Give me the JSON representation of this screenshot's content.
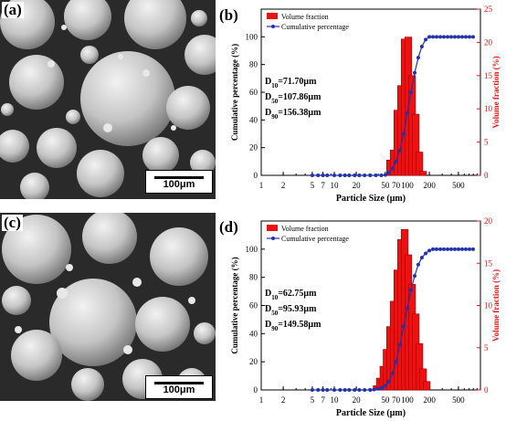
{
  "sem_images": [
    {
      "label": "(a)",
      "scale_bar": "100μm"
    },
    {
      "label": "(c)",
      "scale_bar": "100μm"
    }
  ],
  "colors": {
    "volume": "#ee1111",
    "cumulative": "#2233aa",
    "sem_bg": "#2a2a2a"
  },
  "chart_data": [
    {
      "type": "bar",
      "panel_label": "(b)",
      "xlabel": "Particle Size (μm)",
      "ylabel": "Cumulative percentage (%)",
      "y2label": "Volume fraction (%)",
      "x_scale": "log",
      "xlim": [
        1,
        1000
      ],
      "ylim": [
        0,
        120
      ],
      "y2lim": [
        0,
        25
      ],
      "xticks": [
        1,
        2,
        5,
        7,
        10,
        20,
        50,
        70,
        100,
        200,
        500
      ],
      "yticks": [
        0,
        20,
        40,
        60,
        80,
        100
      ],
      "y2ticks": [
        0,
        5,
        10,
        15,
        20,
        25
      ],
      "legend": {
        "position": "top-left",
        "entries": [
          "Volume fraction",
          "Cumulative percentage"
        ]
      },
      "stats": [
        "D10=71.70μm",
        "D50=107.86μm",
        "D90=156.38μm"
      ],
      "stat_parts": [
        [
          "D",
          "10",
          "=71.70μm"
        ],
        [
          "D",
          "50",
          "=107.86μm"
        ],
        [
          "D",
          "90",
          "=156.38μm"
        ]
      ],
      "volume_fraction": {
        "name": "Volume fraction",
        "x": [
          58,
          65,
          73,
          82,
          92,
          103,
          116,
          130,
          146,
          164
        ],
        "values": [
          2.3,
          3.8,
          9.8,
          13.5,
          20.5,
          20.8,
          15.0,
          9.2,
          3.5,
          0.6
        ]
      },
      "cumulative": {
        "name": "Cumulative percentage",
        "x": [
          5,
          6,
          7,
          8,
          10,
          12,
          14,
          16,
          19,
          22,
          26,
          31,
          37,
          44,
          50,
          56,
          63,
          70,
          79,
          89,
          100,
          112,
          126,
          141,
          158,
          178,
          200,
          224,
          251,
          282,
          316,
          355,
          398,
          447,
          501,
          562,
          631,
          708,
          794
        ],
        "values": [
          0,
          0,
          0,
          0,
          0,
          0,
          0,
          0,
          0,
          0,
          0,
          0,
          0,
          0,
          0.3,
          2,
          5,
          10,
          18,
          30,
          45,
          60,
          74,
          85,
          93,
          98,
          100,
          100,
          100,
          100,
          100,
          100,
          100,
          100,
          100,
          100,
          100,
          100,
          100
        ]
      }
    },
    {
      "type": "bar",
      "panel_label": "(d)",
      "xlabel": "Particle Size (μm)",
      "ylabel": "Cumulative percentage (%)",
      "y2label": "Volume fraction (%)",
      "x_scale": "log",
      "xlim": [
        1,
        1000
      ],
      "ylim": [
        0,
        120
      ],
      "y2lim": [
        0,
        20
      ],
      "xticks": [
        1,
        2,
        5,
        7,
        10,
        20,
        50,
        70,
        100,
        200,
        500
      ],
      "yticks": [
        0,
        20,
        40,
        60,
        80,
        100
      ],
      "y2ticks": [
        0,
        5,
        10,
        15,
        20
      ],
      "legend": {
        "position": "top-left",
        "entries": [
          "Volume fraction",
          "Cumulative percentage"
        ]
      },
      "stats": [
        "D10=62.75μm",
        "D50=95.93μm",
        "D90=149.58μm"
      ],
      "stat_parts": [
        [
          "D",
          "10",
          "=62.75μm"
        ],
        [
          "D",
          "50",
          "=95.93μm"
        ],
        [
          "D",
          "90",
          "=149.58μm"
        ]
      ],
      "volume_fraction": {
        "name": "Volume fraction",
        "x": [
          38,
          42,
          47,
          52,
          58,
          65,
          73,
          82,
          92,
          103,
          116,
          130,
          146,
          164,
          184
        ],
        "values": [
          0.5,
          1.4,
          2.8,
          4.8,
          7.5,
          10.5,
          14.2,
          17.8,
          19.0,
          16.0,
          12.5,
          9.0,
          5.5,
          2.5,
          1.0
        ]
      },
      "cumulative": {
        "name": "Cumulative percentage",
        "x": [
          5,
          6,
          7,
          8,
          10,
          12,
          14,
          16,
          19,
          22,
          26,
          31,
          35,
          40,
          45,
          50,
          56,
          63,
          70,
          79,
          89,
          100,
          112,
          126,
          141,
          158,
          178,
          200,
          224,
          251,
          282,
          316,
          355,
          398,
          447,
          501,
          562,
          631,
          708,
          794
        ],
        "values": [
          0,
          0,
          0,
          0,
          0,
          0,
          0,
          0,
          0,
          0,
          0,
          0,
          0.3,
          0.8,
          1.5,
          3,
          6,
          12,
          20,
          32,
          45,
          58,
          71,
          81,
          89,
          94,
          97,
          99,
          100,
          100,
          100,
          100,
          100,
          100,
          100,
          100,
          100,
          100,
          100,
          100
        ]
      }
    }
  ]
}
